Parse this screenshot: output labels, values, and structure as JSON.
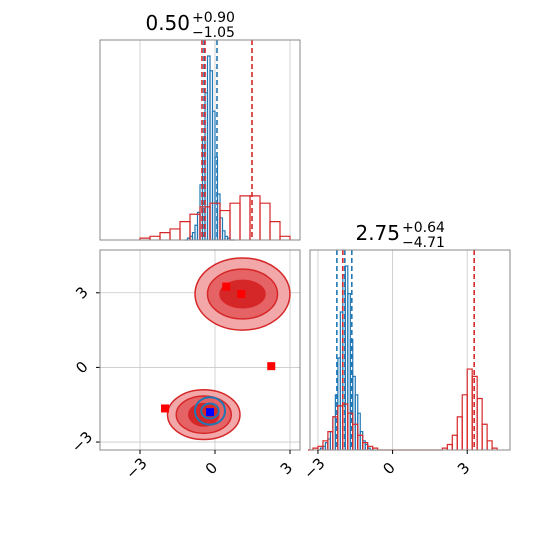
{
  "chart_data": [
    {
      "type": "histogram",
      "title": {
        "main": "0.50",
        "upper": "+0.90",
        "lower": "−1.05"
      },
      "xlim": [
        -4.6,
        3.4
      ],
      "xticks": [
        -3,
        0,
        3
      ],
      "grid": true,
      "series": [
        {
          "color": "#1f77b4",
          "bins": [
            -1.2,
            -1.1,
            -1.0,
            -0.9,
            -0.8,
            -0.7,
            -0.6,
            -0.5,
            -0.4,
            -0.3,
            -0.2,
            -0.1,
            0.0,
            0.1,
            0.2,
            0.3,
            0.4,
            0.5,
            0.6,
            0.7,
            0.8
          ],
          "values": [
            0,
            1,
            2,
            4,
            8,
            15,
            30,
            55,
            80,
            100,
            92,
            70,
            45,
            25,
            12,
            5,
            2,
            1,
            0,
            0
          ],
          "quantiles": [
            -0.44,
            0.08
          ]
        },
        {
          "color": "#d62728",
          "bins": [
            -3.0,
            -2.6,
            -2.2,
            -1.8,
            -1.4,
            -1.0,
            -0.6,
            -0.2,
            0.2,
            0.6,
            1.0,
            1.4,
            1.8,
            2.2,
            2.6,
            3.0
          ],
          "values": [
            1,
            2,
            4,
            6,
            10,
            14,
            18,
            20,
            16,
            20,
            24,
            24,
            20,
            10,
            2
          ],
          "quantiles": [
            -0.52,
            -0.4,
            1.48
          ]
        }
      ]
    },
    {
      "type": "contour",
      "xlim": [
        -4.6,
        3.4
      ],
      "ylim": [
        -3.32,
        4.72
      ],
      "xticks": [
        {
          "value": -3,
          "label": "−3"
        },
        0,
        3
      ],
      "yticks": [
        {
          "value": -3,
          "label": "−3"
        },
        0,
        3
      ],
      "grid": true,
      "contours": [
        {
          "color": "#d62728",
          "fill": true,
          "cx": 1.1,
          "cy": 2.95,
          "rx": [
            1.9,
            1.4,
            0.9
          ],
          "ry": [
            1.45,
            1.0,
            0.55
          ]
        },
        {
          "color": "#d62728",
          "fill": true,
          "cx": -0.45,
          "cy": -1.9,
          "rx": [
            1.45,
            1.1,
            0.6
          ],
          "ry": [
            1.0,
            0.75,
            0.45
          ]
        },
        {
          "color": "#1f77b4",
          "fill": false,
          "cx": -0.2,
          "cy": -1.75,
          "rx": [
            0.6,
            0.35
          ],
          "ry": [
            0.55,
            0.3
          ]
        }
      ],
      "points": [
        {
          "color": "#ff0000",
          "x": [
            0.45,
            1.05,
            2.25,
            -2.0
          ],
          "y": [
            3.25,
            2.95,
            0.05,
            -1.65
          ]
        },
        {
          "color": "#0000ff",
          "x": [
            -0.2
          ],
          "y": [
            -1.8
          ]
        }
      ]
    },
    {
      "type": "histogram",
      "title": {
        "main": "2.75",
        "upper": "+0.64",
        "lower": "−4.71"
      },
      "xlim": [
        -3.32,
        4.72
      ],
      "xticks": [
        {
          "value": -3,
          "label": "−3"
        },
        0,
        3
      ],
      "grid": true,
      "series": [
        {
          "color": "#1f77b4",
          "bins": [
            -3.0,
            -2.9,
            -2.8,
            -2.7,
            -2.6,
            -2.5,
            -2.4,
            -2.3,
            -2.2,
            -2.1,
            -2.0,
            -1.9,
            -1.8,
            -1.7,
            -1.6,
            -1.5,
            -1.4,
            -1.3,
            -1.2,
            -1.1,
            -1.0,
            -0.9,
            -0.8,
            -0.7,
            -0.6
          ],
          "values": [
            0,
            1,
            2,
            4,
            6,
            10,
            18,
            30,
            50,
            75,
            95,
            100,
            85,
            60,
            40,
            30,
            20,
            10,
            5,
            3,
            1,
            0,
            0,
            0
          ],
          "quantiles": [
            -2.24,
            -1.92,
            -1.64
          ]
        },
        {
          "color": "#d62728",
          "bins": [
            -3.4,
            -3.2,
            -3.0,
            -2.8,
            -2.6,
            -2.4,
            -2.2,
            -2.0,
            -1.8,
            -1.6,
            -1.4,
            -1.2,
            -1.0,
            -0.8,
            -0.6,
            -0.4,
            -0.2,
            0.0,
            0.2,
            0.4,
            0.6,
            0.8,
            1.0,
            1.2,
            1.4,
            1.6,
            1.8,
            2.0,
            2.2,
            2.4,
            2.6,
            2.8,
            3.0,
            3.2,
            3.4,
            3.6,
            3.8,
            4.0,
            4.2
          ],
          "values": [
            0,
            1,
            2,
            5,
            10,
            18,
            24,
            25,
            20,
            14,
            8,
            4,
            2,
            1,
            0,
            0,
            0,
            0,
            0,
            0,
            0,
            0,
            0,
            0,
            0,
            0,
            0,
            1,
            3,
            8,
            18,
            30,
            44,
            40,
            28,
            14,
            5,
            1
          ],
          "quantiles": [
            -2.0,
            3.28
          ]
        }
      ]
    }
  ]
}
